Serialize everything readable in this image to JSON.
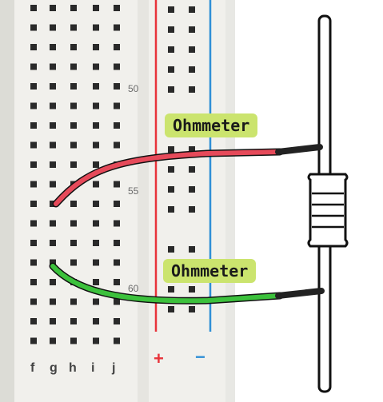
{
  "breadboard": {
    "row_labels": [
      "50",
      "55",
      "60"
    ],
    "column_labels": [
      "f",
      "g",
      "h",
      "i",
      "j"
    ],
    "rail_plus": "+",
    "rail_minus": "−"
  },
  "probes": {
    "top_label": "Ohmmeter",
    "bottom_label": "Ohmmeter"
  },
  "colors": {
    "board": "#f1f0ec",
    "hole": "#2a2a2a",
    "rail_red": "#e8333a",
    "rail_blue": "#2f8fd6",
    "red_wire": "#e64a5a",
    "green_wire": "#3cc13c",
    "label_bg": "#cbe46e"
  }
}
